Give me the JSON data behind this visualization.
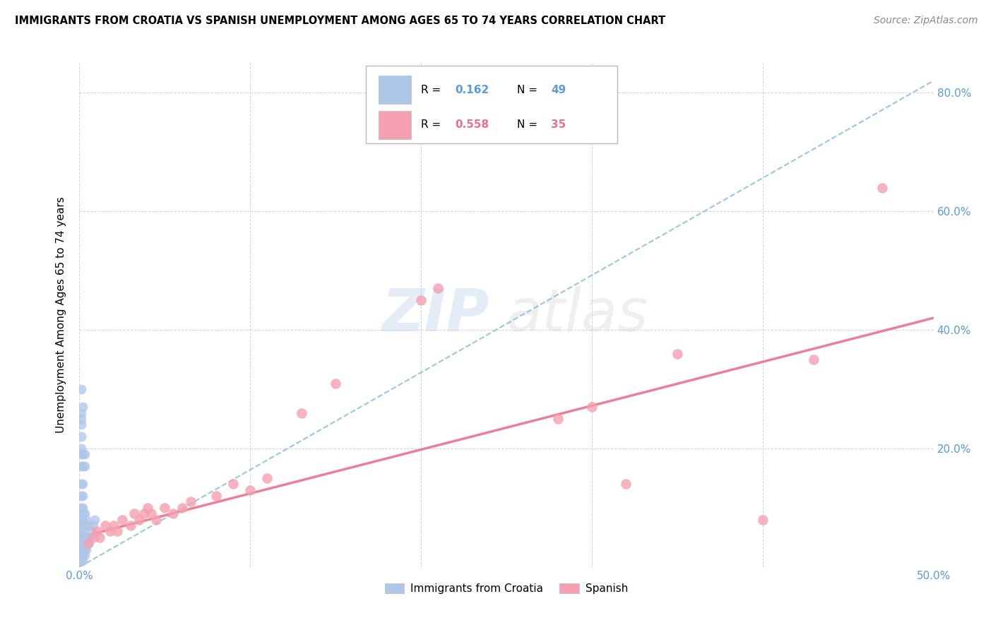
{
  "title": "IMMIGRANTS FROM CROATIA VS SPANISH UNEMPLOYMENT AMONG AGES 65 TO 74 YEARS CORRELATION CHART",
  "source": "Source: ZipAtlas.com",
  "ylabel": "Unemployment Among Ages 65 to 74 years",
  "xmin": 0.0,
  "xmax": 0.5,
  "ymin": 0.0,
  "ymax": 0.85,
  "xticks": [
    0.0,
    0.1,
    0.2,
    0.3,
    0.4,
    0.5
  ],
  "yticks": [
    0.0,
    0.2,
    0.4,
    0.6,
    0.8
  ],
  "ytick_labels": [
    "",
    "20.0%",
    "40.0%",
    "60.0%",
    "80.0%"
  ],
  "xtick_labels": [
    "0.0%",
    "",
    "",
    "",
    "",
    "50.0%"
  ],
  "legend_label1": "Immigrants from Croatia",
  "legend_label2": "Spanish",
  "r1": 0.162,
  "n1": 49,
  "r2": 0.558,
  "n2": 35,
  "color1": "#aec6e8",
  "color2": "#f4a0b0",
  "line1_color": "#7ab3d9",
  "line2_color": "#e8728a",
  "watermark_zip": "ZIP",
  "watermark_atlas": "atlas",
  "croatia_x": [
    0.001,
    0.001,
    0.001,
    0.001,
    0.001,
    0.001,
    0.001,
    0.001,
    0.002,
    0.002,
    0.002,
    0.002,
    0.002,
    0.002,
    0.002,
    0.002,
    0.003,
    0.003,
    0.003,
    0.003,
    0.003,
    0.004,
    0.004,
    0.004,
    0.005,
    0.005,
    0.006,
    0.007,
    0.008,
    0.009,
    0.001,
    0.001,
    0.001,
    0.002,
    0.002,
    0.002,
    0.001,
    0.001,
    0.002,
    0.002,
    0.003,
    0.003,
    0.001,
    0.001,
    0.001,
    0.001,
    0.002,
    0.001,
    0.001
  ],
  "croatia_y": [
    0.01,
    0.02,
    0.03,
    0.04,
    0.05,
    0.06,
    0.07,
    0.08,
    0.01,
    0.02,
    0.03,
    0.04,
    0.05,
    0.06,
    0.08,
    0.09,
    0.02,
    0.03,
    0.05,
    0.07,
    0.09,
    0.03,
    0.05,
    0.08,
    0.04,
    0.07,
    0.05,
    0.06,
    0.07,
    0.08,
    0.1,
    0.12,
    0.14,
    0.1,
    0.12,
    0.14,
    0.17,
    0.19,
    0.17,
    0.19,
    0.17,
    0.19,
    0.24,
    0.25,
    0.26,
    0.3,
    0.27,
    0.2,
    0.22
  ],
  "spanish_x": [
    0.005,
    0.008,
    0.01,
    0.012,
    0.015,
    0.018,
    0.02,
    0.022,
    0.025,
    0.03,
    0.032,
    0.035,
    0.038,
    0.04,
    0.042,
    0.045,
    0.05,
    0.055,
    0.06,
    0.065,
    0.08,
    0.09,
    0.1,
    0.11,
    0.13,
    0.15,
    0.2,
    0.21,
    0.28,
    0.3,
    0.32,
    0.35,
    0.4,
    0.43,
    0.47
  ],
  "spanish_y": [
    0.04,
    0.05,
    0.06,
    0.05,
    0.07,
    0.06,
    0.07,
    0.06,
    0.08,
    0.07,
    0.09,
    0.08,
    0.09,
    0.1,
    0.09,
    0.08,
    0.1,
    0.09,
    0.1,
    0.11,
    0.12,
    0.14,
    0.13,
    0.15,
    0.26,
    0.31,
    0.45,
    0.47,
    0.25,
    0.27,
    0.14,
    0.36,
    0.08,
    0.35,
    0.64
  ]
}
